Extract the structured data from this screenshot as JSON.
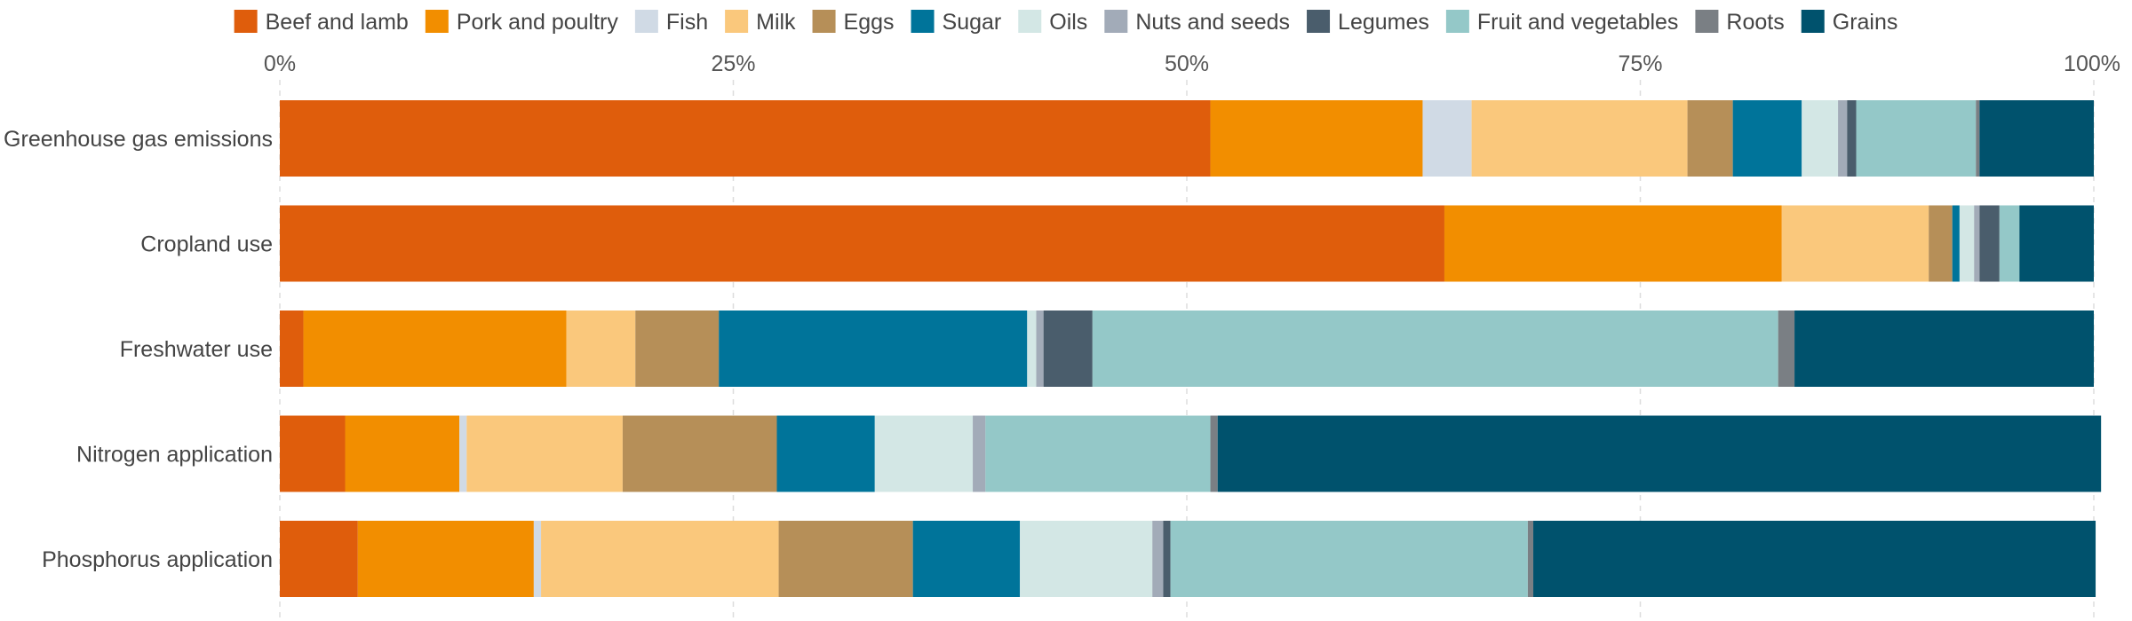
{
  "chart_data": {
    "type": "bar",
    "orientation": "horizontal",
    "stacked": true,
    "title": "",
    "xlabel": "",
    "ylabel": "",
    "xlim": [
      0,
      100
    ],
    "x_ticks": [
      "0%",
      "25%",
      "50%",
      "75%",
      "100%"
    ],
    "grid": true,
    "legend_position": "top",
    "categories": [
      "Greenhouse gas emissions",
      "Cropland use",
      "Freshwater use",
      "Nitrogen application",
      "Phosphorus application"
    ],
    "series": [
      {
        "name": "Beef and lamb",
        "color": "#df5d0c",
        "values": [
          51.3,
          64.2,
          1.3,
          3.6,
          4.3
        ]
      },
      {
        "name": "Pork and poultry",
        "color": "#f28e00",
        "values": [
          11.7,
          18.6,
          14.5,
          6.3,
          9.7
        ]
      },
      {
        "name": "Fish",
        "color": "#d0dae5",
        "values": [
          2.7,
          0.0,
          0.0,
          0.4,
          0.4
        ]
      },
      {
        "name": "Milk",
        "color": "#fac87c",
        "values": [
          11.9,
          8.1,
          3.8,
          8.6,
          13.1
        ]
      },
      {
        "name": "Eggs",
        "color": "#b68f58",
        "values": [
          2.5,
          1.3,
          4.6,
          8.5,
          7.4
        ]
      },
      {
        "name": "Sugar",
        "color": "#00749a",
        "values": [
          3.8,
          0.4,
          17.0,
          5.4,
          5.9
        ]
      },
      {
        "name": "Oils",
        "color": "#d3e7e5",
        "values": [
          2.0,
          0.8,
          0.5,
          5.4,
          7.3
        ]
      },
      {
        "name": "Nuts and seeds",
        "color": "#a2abb8",
        "values": [
          0.5,
          0.3,
          0.4,
          0.7,
          0.6
        ]
      },
      {
        "name": "Legumes",
        "color": "#4a5d6c",
        "values": [
          0.5,
          1.1,
          2.7,
          0.0,
          0.4
        ]
      },
      {
        "name": "Fruit and vegetables",
        "color": "#94c8c8",
        "values": [
          6.6,
          1.1,
          37.8,
          12.4,
          19.7
        ]
      },
      {
        "name": "Roots",
        "color": "#7a7f84",
        "values": [
          0.2,
          0.0,
          0.9,
          0.4,
          0.3
        ]
      },
      {
        "name": "Grains",
        "color": "#00526d",
        "values": [
          6.3,
          4.1,
          16.5,
          48.7,
          31.0
        ]
      }
    ]
  }
}
